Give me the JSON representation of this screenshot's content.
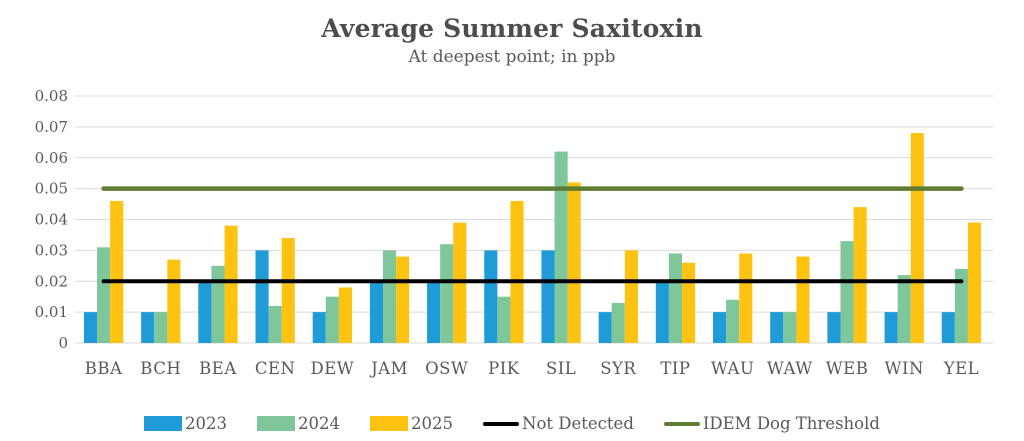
{
  "header": {
    "title": "Average Summer Saxitoxin",
    "subtitle": "At deepest point; in ppb"
  },
  "colors": {
    "title_text": "#4d4d4d",
    "axis_text": "#595959",
    "gridline": "#d9d9d9",
    "background": "#ffffff"
  },
  "chart_data": {
    "type": "bar",
    "title": "Average Summer Saxitoxin",
    "subtitle": "At deepest point; in ppb",
    "xlabel": "",
    "ylabel": "",
    "ylim": [
      0,
      0.08
    ],
    "y_ticks": [
      0,
      0.01,
      0.02,
      0.03,
      0.04,
      0.05,
      0.06,
      0.07,
      0.08
    ],
    "y_tick_labels": [
      "0",
      "0.01",
      "0.02",
      "0.03",
      "0.04",
      "0.05",
      "0.06",
      "0.07",
      "0.08"
    ],
    "grid": true,
    "categories": [
      "BBA",
      "BCH",
      "BEA",
      "CEN",
      "DEW",
      "JAM",
      "OSW",
      "PIK",
      "SIL",
      "SYR",
      "TIP",
      "WAU",
      "WAW",
      "WEB",
      "WIN",
      "YEL"
    ],
    "series": [
      {
        "name": "2023",
        "color": "#1f9bd8",
        "values": [
          0.01,
          0.01,
          0.02,
          0.03,
          0.01,
          0.02,
          0.02,
          0.03,
          0.03,
          0.01,
          0.02,
          0.01,
          0.01,
          0.01,
          0.01,
          0.01
        ]
      },
      {
        "name": "2024",
        "color": "#7fc69b",
        "values": [
          0.031,
          0.01,
          0.025,
          0.012,
          0.015,
          0.03,
          0.032,
          0.015,
          0.062,
          0.013,
          0.029,
          0.014,
          0.01,
          0.033,
          0.022,
          0.024
        ]
      },
      {
        "name": "2025",
        "color": "#fec211",
        "values": [
          0.046,
          0.027,
          0.038,
          0.034,
          0.018,
          0.028,
          0.039,
          0.046,
          0.052,
          0.03,
          0.026,
          0.029,
          0.028,
          0.044,
          0.068,
          0.039
        ]
      }
    ],
    "threshold_lines": [
      {
        "name": "Not Detected",
        "color": "#000000",
        "value": 0.02,
        "stroke_width": 4
      },
      {
        "name": "IDEM Dog Threshold",
        "color": "#5e7d32",
        "value": 0.05,
        "stroke_width": 4.5
      }
    ],
    "legend": {
      "position": "bottom",
      "items": [
        {
          "swatch": "rect",
          "color": "#1f9bd8",
          "label": "2023"
        },
        {
          "swatch": "rect",
          "color": "#7fc69b",
          "label": "2024"
        },
        {
          "swatch": "rect",
          "color": "#fec211",
          "label": "2025"
        },
        {
          "swatch": "line",
          "color": "#000000",
          "label": "Not Detected"
        },
        {
          "swatch": "line",
          "color": "#5e7d32",
          "label": "IDEM Dog Threshold"
        }
      ]
    }
  }
}
